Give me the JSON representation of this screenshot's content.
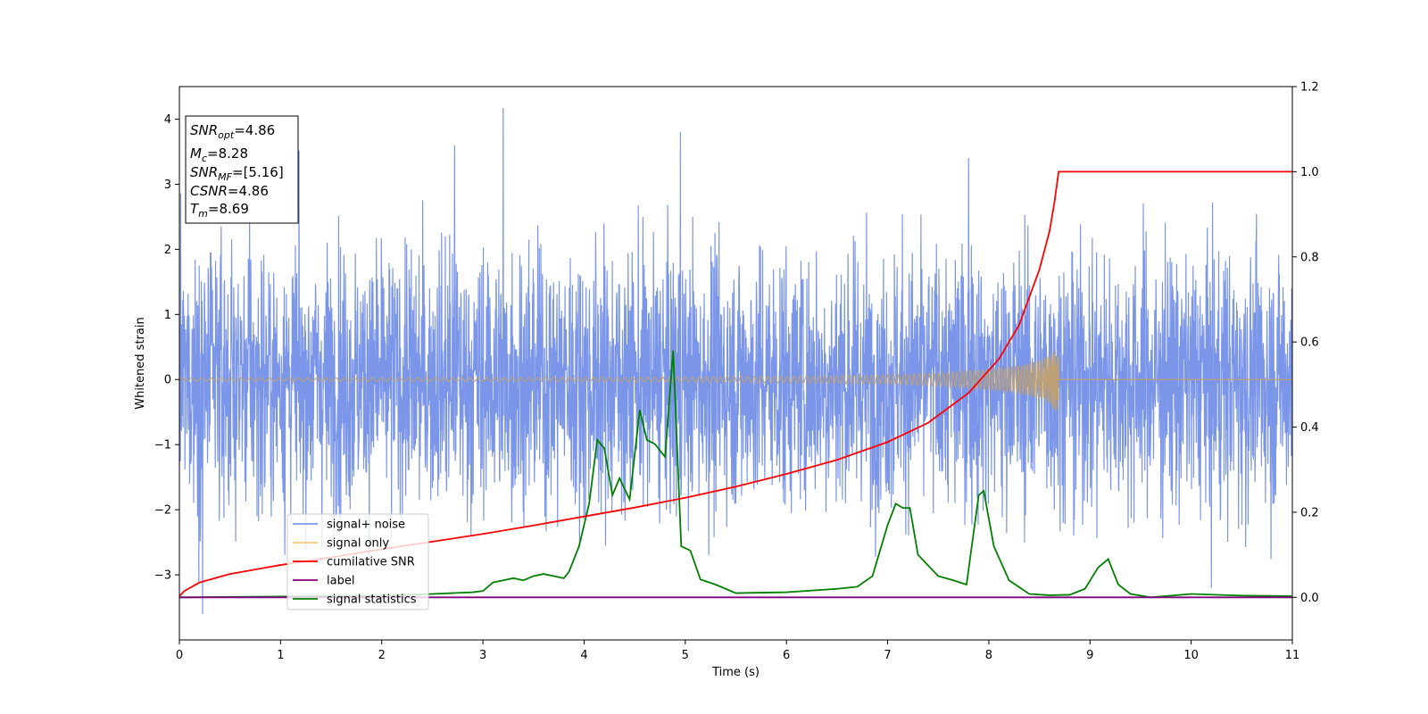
{
  "chart_data": {
    "type": "line",
    "xlabel": "Time (s)",
    "ylabel": "Whitened strain",
    "xlim": [
      0,
      11
    ],
    "ylim_left": [
      -4.0,
      4.5
    ],
    "ylim_right": [
      -0.1,
      1.2
    ],
    "x_ticks": [
      0,
      1,
      2,
      3,
      4,
      5,
      6,
      7,
      8,
      9,
      10,
      11
    ],
    "y_left_ticks": [
      -3,
      -2,
      -1,
      0,
      1,
      2,
      3,
      4
    ],
    "y_right_ticks": [
      0.0,
      0.2,
      0.4,
      0.6,
      0.8,
      1.0,
      1.2
    ],
    "grid": false,
    "legend_position": "lower-left",
    "annotation": {
      "lines": [
        {
          "base": "SNR",
          "sub": "opt",
          "rest": "=4.86"
        },
        {
          "base": "M",
          "sub": "c",
          "rest": "=8.28"
        },
        {
          "base": "SNR",
          "sub": "MF",
          "rest": "=[5.16]"
        },
        {
          "base": "CSNR",
          "sub": "",
          "rest": "=4.86"
        },
        {
          "base": "T",
          "sub": "m",
          "rest": "=8.69"
        }
      ]
    },
    "series": [
      {
        "name": "signal+ noise",
        "axis": "left",
        "color": "#7b96e8",
        "kind": "noise",
        "approx_std": 1.0,
        "approx_range": [
          -3.6,
          4.17
        ],
        "sample_peaks": [
          [
            3.2,
            4.17
          ],
          [
            2.72,
            3.6
          ],
          [
            4.95,
            3.8
          ],
          [
            7.8,
            3.4
          ],
          [
            0.23,
            -3.6
          ],
          [
            10.2,
            -3.2
          ]
        ]
      },
      {
        "name": "signal only",
        "axis": "left",
        "color": "#f5c77e",
        "kind": "chirp",
        "merger_time": 8.69,
        "peak_amplitude": 0.6,
        "amplitude_points": [
          [
            0,
            0.02
          ],
          [
            2,
            0.025
          ],
          [
            4,
            0.03
          ],
          [
            5,
            0.04
          ],
          [
            6,
            0.05
          ],
          [
            7,
            0.07
          ],
          [
            7.5,
            0.1
          ],
          [
            8,
            0.16
          ],
          [
            8.3,
            0.22
          ],
          [
            8.5,
            0.3
          ],
          [
            8.6,
            0.38
          ],
          [
            8.69,
            0.6
          ]
        ]
      },
      {
        "name": "cumilative SNR",
        "axis": "right",
        "color": "#ff0000",
        "x": [
          0,
          0.05,
          0.2,
          0.5,
          1.0,
          1.5,
          2.0,
          2.5,
          3.0,
          3.5,
          4.0,
          4.5,
          5.0,
          5.5,
          6.0,
          6.5,
          7.0,
          7.4,
          7.8,
          8.1,
          8.3,
          8.5,
          8.6,
          8.65,
          8.69,
          9.0,
          10.0,
          11.0
        ],
        "values": [
          0.003,
          0.015,
          0.035,
          0.055,
          0.076,
          0.094,
          0.113,
          0.131,
          0.149,
          0.169,
          0.19,
          0.211,
          0.234,
          0.26,
          0.29,
          0.323,
          0.365,
          0.41,
          0.48,
          0.56,
          0.64,
          0.77,
          0.86,
          0.93,
          1.0,
          1.0,
          1.0,
          1.0
        ]
      },
      {
        "name": "label",
        "axis": "right",
        "color": "#800080",
        "x": [
          0,
          11
        ],
        "values": [
          0,
          0
        ]
      },
      {
        "name": "signal statistics",
        "axis": "right",
        "color": "#008000",
        "x": [
          0,
          1.0,
          2.0,
          2.3,
          2.5,
          2.7,
          2.9,
          3.0,
          3.1,
          3.2,
          3.3,
          3.4,
          3.5,
          3.6,
          3.7,
          3.8,
          3.85,
          3.95,
          4.05,
          4.13,
          4.2,
          4.28,
          4.35,
          4.45,
          4.55,
          4.62,
          4.7,
          4.8,
          4.88,
          4.96,
          5.05,
          5.15,
          5.3,
          5.5,
          6.0,
          6.5,
          6.7,
          6.85,
          6.95,
          7.0,
          7.08,
          7.15,
          7.22,
          7.3,
          7.5,
          7.65,
          7.78,
          7.9,
          7.95,
          8.05,
          8.2,
          8.4,
          8.6,
          8.8,
          8.95,
          9.08,
          9.18,
          9.28,
          9.4,
          9.6,
          10.0,
          10.5,
          11.0
        ],
        "values": [
          0.0,
          0.002,
          0.004,
          0.006,
          0.008,
          0.01,
          0.012,
          0.015,
          0.035,
          0.04,
          0.045,
          0.04,
          0.05,
          0.055,
          0.05,
          0.045,
          0.06,
          0.12,
          0.22,
          0.37,
          0.35,
          0.24,
          0.28,
          0.23,
          0.44,
          0.37,
          0.36,
          0.33,
          0.58,
          0.12,
          0.11,
          0.042,
          0.03,
          0.01,
          0.012,
          0.02,
          0.025,
          0.05,
          0.13,
          0.17,
          0.22,
          0.21,
          0.21,
          0.1,
          0.05,
          0.04,
          0.03,
          0.24,
          0.25,
          0.12,
          0.04,
          0.008,
          0.005,
          0.006,
          0.02,
          0.07,
          0.09,
          0.03,
          0.008,
          0.0,
          0.008,
          0.004,
          0.003
        ]
      }
    ]
  }
}
